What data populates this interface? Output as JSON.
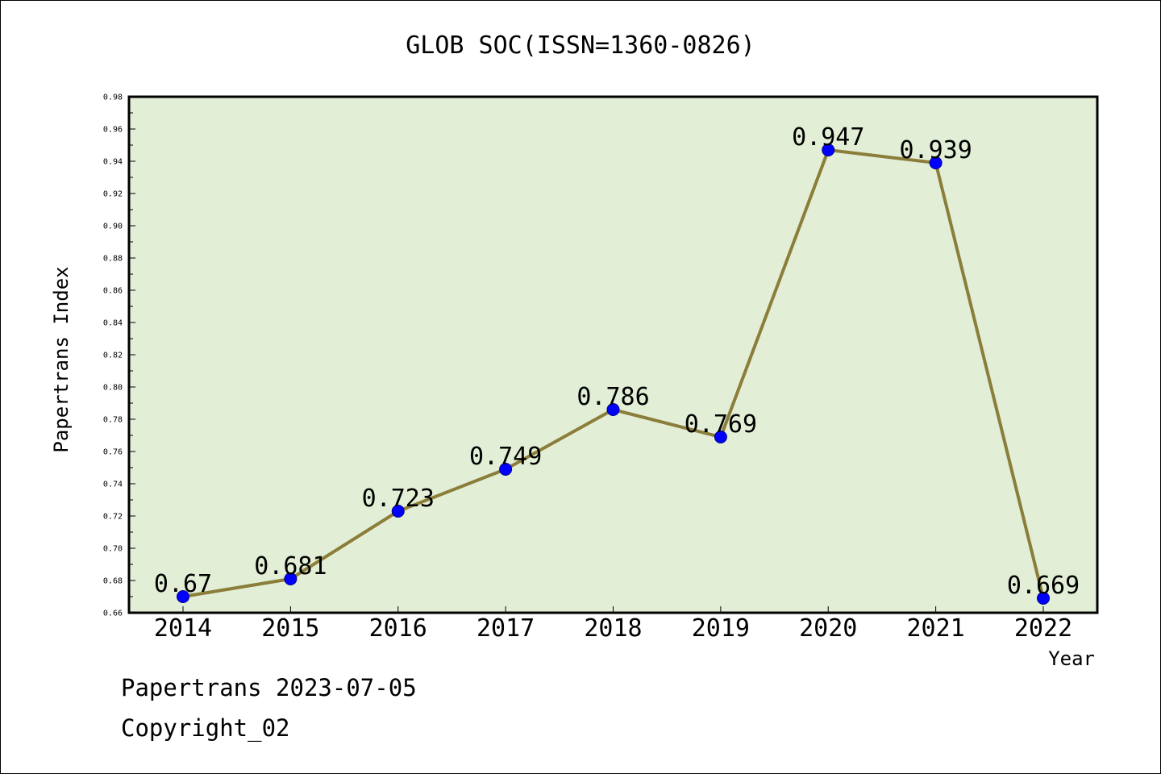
{
  "chart_data": {
    "type": "line",
    "title": "GLOB SOC(ISSN=1360-0826)",
    "xlabel": "Year",
    "ylabel": "Papertrans Index",
    "categories": [
      "2014",
      "2015",
      "2016",
      "2017",
      "2018",
      "2019",
      "2020",
      "2021",
      "2022"
    ],
    "values": [
      0.67,
      0.681,
      0.723,
      0.749,
      0.786,
      0.769,
      0.947,
      0.939,
      0.669
    ],
    "value_labels": [
      "0.67",
      "0.681",
      "0.723",
      "0.749",
      "0.786",
      "0.769",
      "0.947",
      "0.939",
      "0.669"
    ],
    "ylim": [
      0.66,
      0.98
    ],
    "yticks": [
      "0.66",
      "0.68",
      "0.70",
      "0.72",
      "0.74",
      "0.76",
      "0.78",
      "0.80",
      "0.82",
      "0.84",
      "0.86",
      "0.88",
      "0.90",
      "0.92",
      "0.94",
      "0.96",
      "0.98"
    ],
    "grid": false,
    "colors": {
      "plot_background": "#e2efd6",
      "line": "#8b7d3a",
      "marker": "#0000ff"
    }
  },
  "footer": {
    "line1": "Papertrans 2023-07-05",
    "line2": "Copyright_02"
  }
}
